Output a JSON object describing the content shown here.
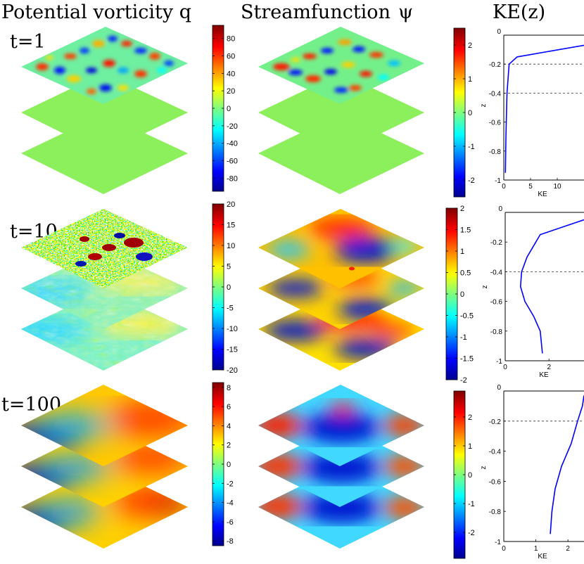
{
  "figure": {
    "titles": {
      "pv": "Potential vorticity q",
      "sf": "Streamfunction",
      "psi": "ψ",
      "ke": "KE(z)"
    },
    "time_labels": [
      "t=1",
      "t=10",
      "t=100"
    ]
  },
  "chart_data": [
    {
      "type": "heatmap",
      "title": "Potential vorticity q",
      "panel": "t=1",
      "layers": 3,
      "colorbar": {
        "range": [
          -95,
          95
        ],
        "ticks": [
          "80",
          "60",
          "40",
          "20",
          "0",
          "-20",
          "-40",
          "-60",
          "-80"
        ],
        "tick_values": [
          80,
          60,
          40,
          20,
          0,
          -20,
          -40,
          -60,
          -80
        ]
      },
      "layer_pattern": [
        "eddies",
        "flat",
        "flat"
      ]
    },
    {
      "type": "heatmap",
      "title": "Streamfunction ψ",
      "panel": "t=1",
      "layers": 3,
      "colorbar": {
        "range": [
          -2.5,
          2.5
        ],
        "ticks": [
          "2",
          "1",
          "0",
          "-1",
          "-2"
        ],
        "tick_values": [
          2,
          1,
          0,
          -1,
          -2
        ]
      },
      "layer_pattern": [
        "eddies",
        "flat",
        "flat"
      ]
    },
    {
      "type": "line",
      "title": "KE(z)",
      "panel": "t=1",
      "xlabel": "KE",
      "ylabel": "z",
      "xlim": [
        0,
        15
      ],
      "ylim": [
        -1,
        0
      ],
      "xticks": [
        0,
        5,
        10
      ],
      "xtick_labels": [
        "0",
        "5",
        "10"
      ],
      "yticks": [
        0,
        -0.2,
        -0.4,
        -0.6,
        -0.8,
        -1
      ],
      "ytick_labels": [
        "0",
        "-0.2",
        "-0.4",
        "-0.6",
        "-0.8",
        "-1"
      ],
      "dashed_levels": [
        -0.2,
        -0.4
      ],
      "series": [
        {
          "name": "KE",
          "x": [
            0.3,
            0.4,
            0.6,
            1.0,
            2.5,
            15.0
          ],
          "y": [
            -0.95,
            -0.7,
            -0.4,
            -0.2,
            -0.15,
            -0.07
          ]
        }
      ]
    },
    {
      "type": "heatmap",
      "title": "Potential vorticity q",
      "panel": "t=10",
      "layers": 3,
      "colorbar": {
        "range": [
          -20,
          20
        ],
        "ticks": [
          "20",
          "15",
          "10",
          "5",
          "0",
          "-5",
          "-10",
          "-15",
          "-20"
        ],
        "tick_values": [
          20,
          15,
          10,
          5,
          0,
          -5,
          -10,
          -15,
          -20
        ]
      },
      "layer_pattern": [
        "noise",
        "filaments",
        "filaments"
      ]
    },
    {
      "type": "heatmap",
      "title": "Streamfunction ψ",
      "panel": "t=10",
      "layers": 3,
      "colorbar": {
        "range": [
          -2,
          2
        ],
        "ticks": [
          "2",
          "1.5",
          "1",
          "0.5",
          "0",
          "-0.5",
          "-1",
          "-1.5",
          "-2"
        ],
        "tick_values": [
          2,
          1.5,
          1,
          0.5,
          0,
          -0.5,
          -1,
          -1.5,
          -2
        ]
      },
      "layer_pattern": [
        "blobs",
        "blobs",
        "blobs"
      ]
    },
    {
      "type": "line",
      "title": "KE(z)",
      "panel": "t=10",
      "xlabel": "KE",
      "ylabel": "z",
      "xlim": [
        0,
        3.6
      ],
      "ylim": [
        -1,
        0
      ],
      "xticks": [
        0,
        2
      ],
      "xtick_labels": [
        "0",
        "2"
      ],
      "yticks": [
        0,
        -0.2,
        -0.4,
        -0.6,
        -0.8,
        -1
      ],
      "ytick_labels": [
        "0",
        "-0.2",
        "-0.4",
        "-0.6",
        "-0.8",
        "-1"
      ],
      "dashed_levels": [
        -0.4
      ],
      "series": [
        {
          "name": "KE",
          "x": [
            1.7,
            1.6,
            1.3,
            0.9,
            0.7,
            0.75,
            1.0,
            1.6,
            3.6
          ],
          "y": [
            -0.95,
            -0.8,
            -0.7,
            -0.6,
            -0.5,
            -0.4,
            -0.3,
            -0.15,
            -0.05
          ]
        }
      ]
    },
    {
      "type": "heatmap",
      "title": "Potential vorticity q",
      "panel": "t=100",
      "layers": 3,
      "colorbar": {
        "range": [
          -8.5,
          8.5
        ],
        "ticks": [
          "8",
          "6",
          "4",
          "2",
          "0",
          "-2",
          "-4",
          "-6",
          "-8"
        ],
        "tick_values": [
          8,
          6,
          4,
          2,
          0,
          -2,
          -4,
          -6,
          -8
        ]
      },
      "layer_pattern": [
        "gradient",
        "gradient",
        "gradient"
      ]
    },
    {
      "type": "heatmap",
      "title": "Streamfunction ψ",
      "panel": "t=100",
      "layers": 3,
      "colorbar": {
        "range": [
          -2.9,
          2.9
        ],
        "ticks": [
          "2",
          "1",
          "0",
          "-1",
          "-2"
        ],
        "tick_values": [
          2,
          1,
          0,
          -1,
          -2
        ]
      },
      "layer_pattern": [
        "dipole",
        "dipole",
        "dipole"
      ]
    },
    {
      "type": "line",
      "title": "KE(z)",
      "panel": "t=100",
      "xlabel": "KE",
      "ylabel": "z",
      "xlim": [
        0,
        2.5
      ],
      "ylim": [
        -1,
        0
      ],
      "xticks": [
        0,
        1,
        2
      ],
      "xtick_labels": [
        "0",
        "1",
        "2"
      ],
      "yticks": [
        0,
        -0.2,
        -0.4,
        -0.6,
        -0.8,
        -1
      ],
      "ytick_labels": [
        "0",
        "-0.2",
        "-0.4",
        "-0.6",
        "-0.8",
        "-1"
      ],
      "dashed_levels": [
        -0.2
      ],
      "series": [
        {
          "name": "KE",
          "x": [
            1.45,
            1.5,
            1.6,
            1.8,
            2.1,
            2.3,
            2.45,
            2.5
          ],
          "y": [
            -0.95,
            -0.8,
            -0.65,
            -0.5,
            -0.35,
            -0.2,
            -0.1,
            -0.03
          ]
        }
      ]
    }
  ]
}
